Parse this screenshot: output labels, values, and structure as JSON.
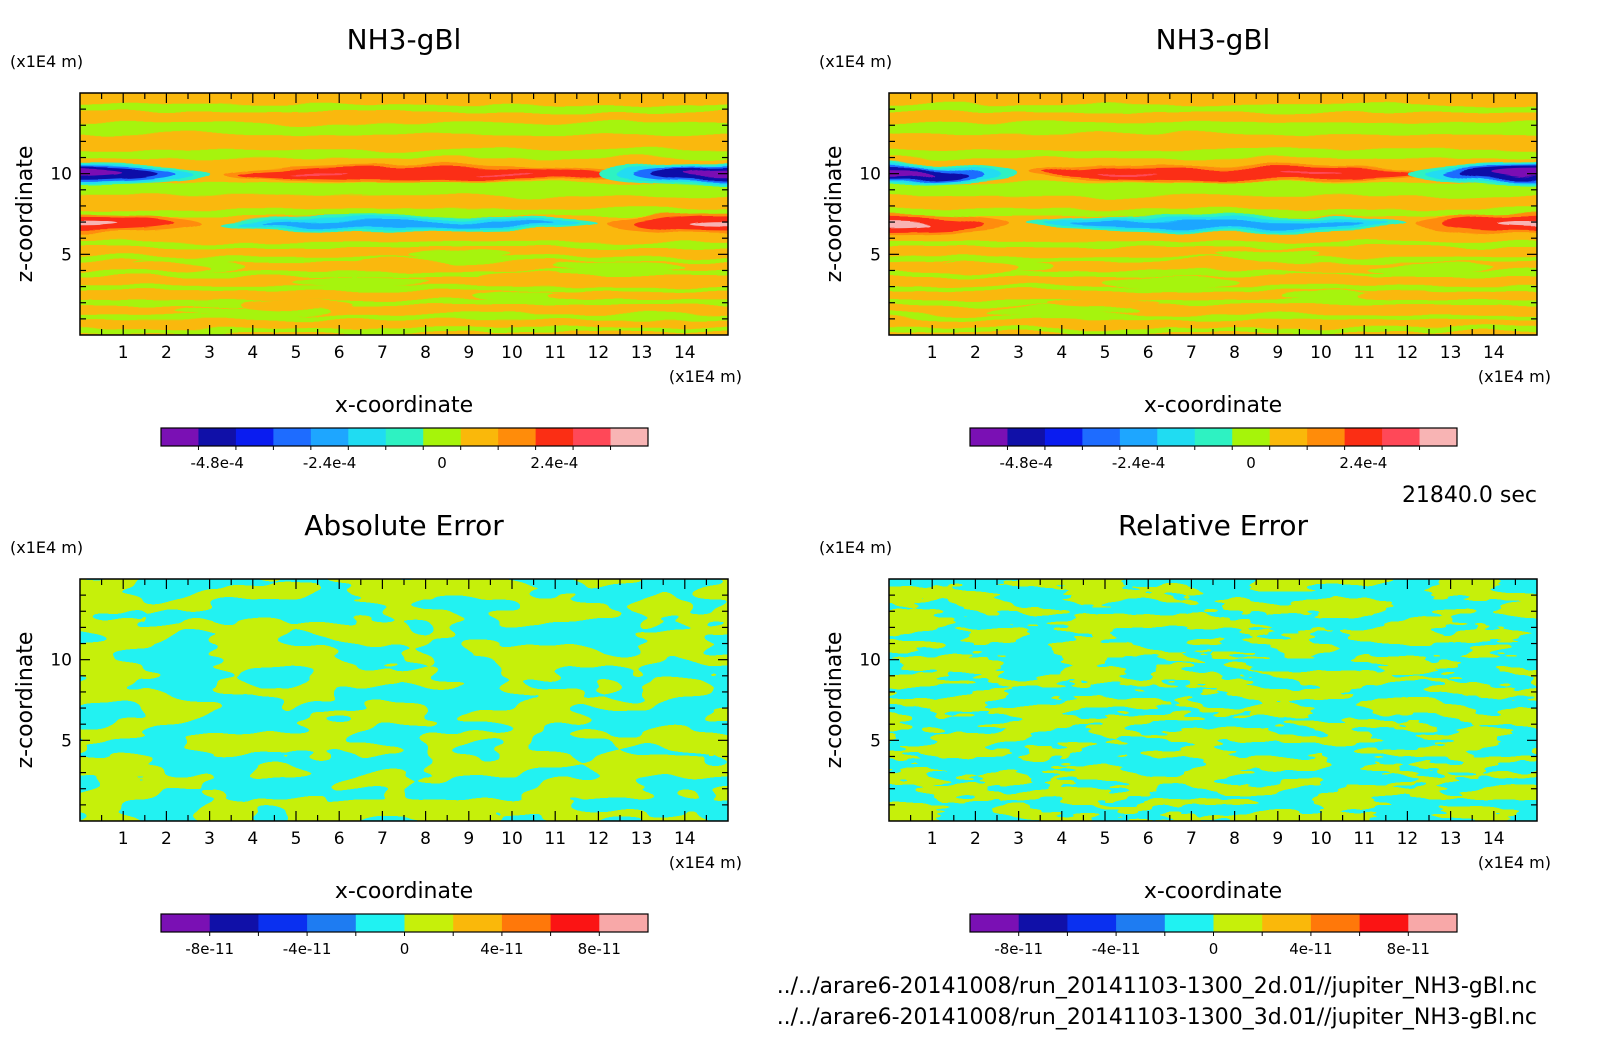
{
  "time_label": "21840.0 sec",
  "files": [
    "../../arare6-20141008/run_20141103-1300_2d.01//jupiter_NH3-gBl.nc",
    "../../arare6-20141008/run_20141103-1300_3d.01//jupiter_NH3-gBl.nc"
  ],
  "chart_data": [
    {
      "type": "heatmap",
      "title": "NH3-gBl",
      "xlabel": "x-coordinate",
      "ylabel": "z-coordinate",
      "x_unit": "(x1E4 m)",
      "y_unit": "(x1E4 m)",
      "xlim": [
        0,
        15
      ],
      "ylim": [
        0,
        15
      ],
      "x_ticks": [
        "1",
        "2",
        "3",
        "4",
        "5",
        "6",
        "7",
        "8",
        "9",
        "10",
        "11",
        "12",
        "13",
        "14"
      ],
      "y_ticks": [
        "5",
        "10"
      ],
      "colorbar": {
        "colors": [
          "#7a10b4",
          "#1010a8",
          "#0a1cf0",
          "#1e6cff",
          "#1ea6ff",
          "#20dcf2",
          "#2ef2c2",
          "#a6f40a",
          "#fab80a",
          "#ff8c0a",
          "#fb2e14",
          "#ff4858",
          "#f8b4b4"
        ],
        "tick_labels": [
          "-4.8e-4",
          "-2.4e-4",
          "0",
          "2.4e-4"
        ],
        "tick_positions": [
          1.5,
          4.5,
          7.5,
          10.5
        ]
      }
    },
    {
      "type": "heatmap",
      "title": "NH3-gBl",
      "xlabel": "x-coordinate",
      "ylabel": "z-coordinate",
      "x_unit": "(x1E4 m)",
      "y_unit": "(x1E4 m)",
      "xlim": [
        0,
        15
      ],
      "ylim": [
        0,
        15
      ],
      "x_ticks": [
        "1",
        "2",
        "3",
        "4",
        "5",
        "6",
        "7",
        "8",
        "9",
        "10",
        "11",
        "12",
        "13",
        "14"
      ],
      "y_ticks": [
        "5",
        "10"
      ],
      "colorbar": {
        "colors": [
          "#7a10b4",
          "#1010a8",
          "#0a1cf0",
          "#1e6cff",
          "#1ea6ff",
          "#20dcf2",
          "#2ef2c2",
          "#a6f40a",
          "#fab80a",
          "#ff8c0a",
          "#fb2e14",
          "#ff4858",
          "#f8b4b4"
        ],
        "tick_labels": [
          "-4.8e-4",
          "-2.4e-4",
          "0",
          "2.4e-4"
        ],
        "tick_positions": [
          1.5,
          4.5,
          7.5,
          10.5
        ]
      }
    },
    {
      "type": "heatmap",
      "title": "Absolute Error",
      "xlabel": "x-coordinate",
      "ylabel": "z-coordinate",
      "x_unit": "(x1E4 m)",
      "y_unit": "(x1E4 m)",
      "xlim": [
        0,
        15
      ],
      "ylim": [
        0,
        15
      ],
      "x_ticks": [
        "1",
        "2",
        "3",
        "4",
        "5",
        "6",
        "7",
        "8",
        "9",
        "10",
        "11",
        "12",
        "13",
        "14"
      ],
      "y_ticks": [
        "5",
        "10"
      ],
      "colorbar": {
        "colors": [
          "#7a10b4",
          "#1010a8",
          "#0a30f0",
          "#1e7cf2",
          "#20f2f2",
          "#c6f00a",
          "#fab80a",
          "#ff780a",
          "#fb1414",
          "#f8a8a8"
        ],
        "tick_labels": [
          "-8e-11",
          "-4e-11",
          "0",
          "4e-11",
          "8e-11"
        ],
        "tick_positions": [
          1,
          3,
          5,
          7,
          9
        ]
      }
    },
    {
      "type": "heatmap",
      "title": "Relative Error",
      "xlabel": "x-coordinate",
      "ylabel": "z-coordinate",
      "x_unit": "(x1E4 m)",
      "y_unit": "(x1E4 m)",
      "xlim": [
        0,
        15
      ],
      "ylim": [
        0,
        15
      ],
      "x_ticks": [
        "1",
        "2",
        "3",
        "4",
        "5",
        "6",
        "7",
        "8",
        "9",
        "10",
        "11",
        "12",
        "13",
        "14"
      ],
      "y_ticks": [
        "5",
        "10"
      ],
      "colorbar": {
        "colors": [
          "#7a10b4",
          "#1010a8",
          "#0a30f0",
          "#1e7cf2",
          "#20f2f2",
          "#c6f00a",
          "#fab80a",
          "#ff780a",
          "#fb1414",
          "#f8a8a8"
        ],
        "tick_labels": [
          "-8e-11",
          "-4e-11",
          "0",
          "4e-11",
          "8e-11"
        ],
        "tick_positions": [
          1,
          3,
          5,
          7,
          9
        ]
      }
    }
  ]
}
